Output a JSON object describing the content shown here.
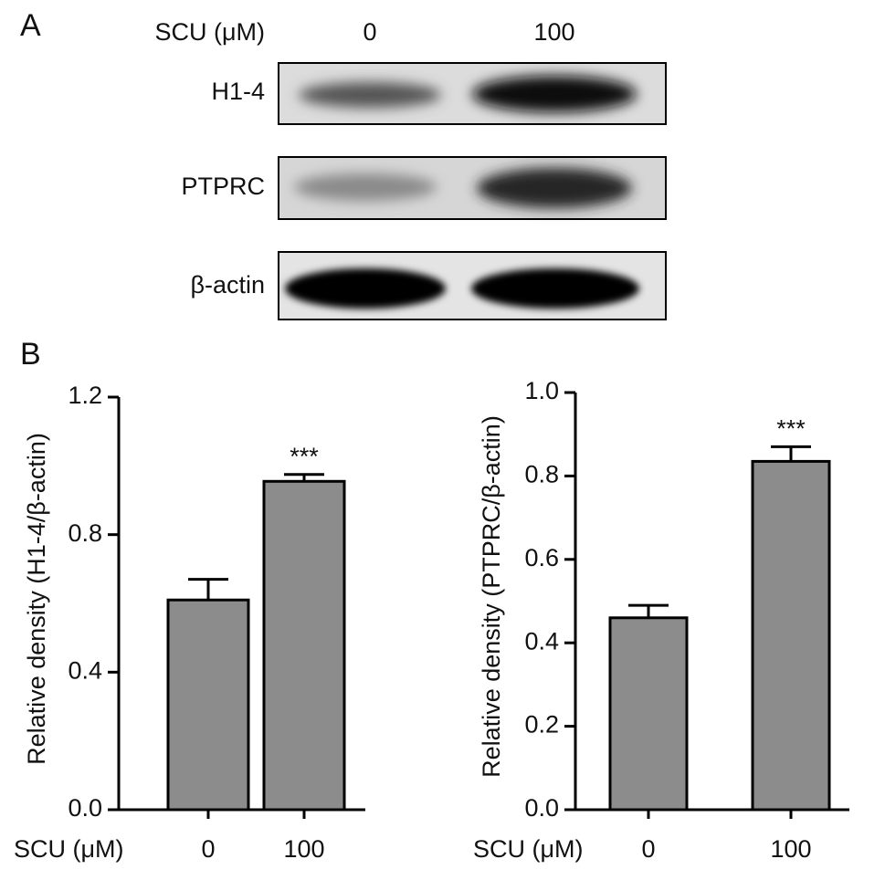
{
  "panel_a": {
    "label": "A",
    "treatment_label": "SCU (μM)",
    "lanes": [
      "0",
      "100"
    ],
    "rows": [
      "H1-4",
      "PTPRC",
      "β-actin"
    ]
  },
  "panel_b": {
    "label": "B"
  },
  "chart_data": [
    {
      "type": "bar",
      "y_label": "Relative density (H1-4/β-actin)",
      "x_label": "SCU (μM)",
      "categories": [
        "0",
        "100"
      ],
      "values": [
        0.61,
        0.955
      ],
      "errors": [
        0.06,
        0.02
      ],
      "color": "#8c8c8c",
      "annotations": [
        {
          "category_index": 1,
          "text": "***"
        }
      ],
      "ylim": [
        0,
        1.2
      ],
      "yticks": [
        {
          "value": 0,
          "label": "0.0"
        },
        {
          "value": 0.4,
          "label": "0.4"
        },
        {
          "value": 0.8,
          "label": "0.8"
        },
        {
          "value": 1.2,
          "label": "1.2"
        }
      ]
    },
    {
      "type": "bar",
      "y_label": "Relative density (PTPRC/β-actin)",
      "x_label": "SCU (μM)",
      "categories": [
        "0",
        "100"
      ],
      "values": [
        0.46,
        0.835
      ],
      "errors": [
        0.03,
        0.035
      ],
      "color": "#8c8c8c",
      "annotations": [
        {
          "category_index": 1,
          "text": "***"
        }
      ],
      "ylim": [
        0,
        1.0
      ],
      "yticks": [
        {
          "value": 0,
          "label": "0.0"
        },
        {
          "value": 0.2,
          "label": "0.2"
        },
        {
          "value": 0.4,
          "label": "0.4"
        },
        {
          "value": 0.6,
          "label": "0.6"
        },
        {
          "value": 0.8,
          "label": "0.8"
        },
        {
          "value": 1.0,
          "label": "1.0"
        }
      ]
    }
  ]
}
